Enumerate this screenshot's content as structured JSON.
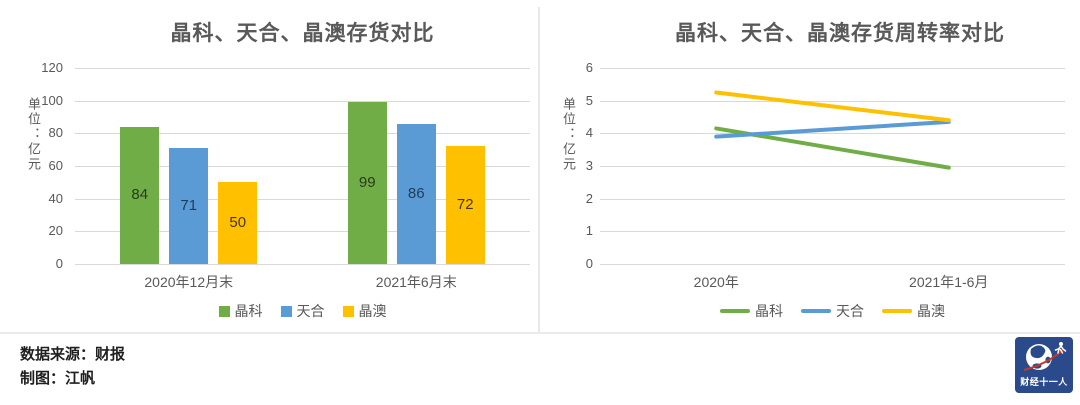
{
  "footer": {
    "source_line": "数据来源：财报",
    "credit_line": "制图：江帆",
    "logo_text": "财经十一人"
  },
  "colors": {
    "jinko_green": "#70ad47",
    "trina_blue": "#5b9bd5",
    "ja_yellow": "#ffc000",
    "title_gray": "#595959",
    "gridline_gray": "#d9d9d9",
    "logo_navy": "#2b4a8b",
    "logo_arrow_red": "#c0392b"
  },
  "chart_data": [
    {
      "type": "bar",
      "title": "晶科、天合、晶澳存货对比",
      "ylabel": "单位：亿元",
      "xlabel": "",
      "categories": [
        "2020年12月末",
        "2021年6月末"
      ],
      "series": [
        {
          "name": "晶科",
          "color": "#70ad47",
          "label_color": "#273d1a",
          "values": [
            84,
            99
          ]
        },
        {
          "name": "天合",
          "color": "#5b9bd5",
          "label_color": "#1e3c5c",
          "values": [
            71,
            86
          ]
        },
        {
          "name": "晶澳",
          "color": "#ffc000",
          "label_color": "#463711",
          "values": [
            50,
            72
          ]
        }
      ],
      "ylim": [
        0,
        120
      ],
      "ytick_step": 20,
      "grid": true,
      "legend_position": "bottom",
      "data_labels": "center"
    },
    {
      "type": "line",
      "title": "晶科、天合、晶澳存货周转率对比",
      "ylabel": "单位：亿元",
      "xlabel": "",
      "categories": [
        "2020年",
        "2021年1-6月"
      ],
      "series": [
        {
          "name": "晶科",
          "color": "#70ad47",
          "values": [
            4.15,
            2.95
          ]
        },
        {
          "name": "天合",
          "color": "#5b9bd5",
          "values": [
            3.9,
            4.35
          ]
        },
        {
          "name": "晶澳",
          "color": "#ffc000",
          "values": [
            5.25,
            4.4
          ]
        }
      ],
      "ylim": [
        0,
        6
      ],
      "ytick_step": 1,
      "grid": true,
      "legend_position": "bottom",
      "line_width": 4
    }
  ]
}
